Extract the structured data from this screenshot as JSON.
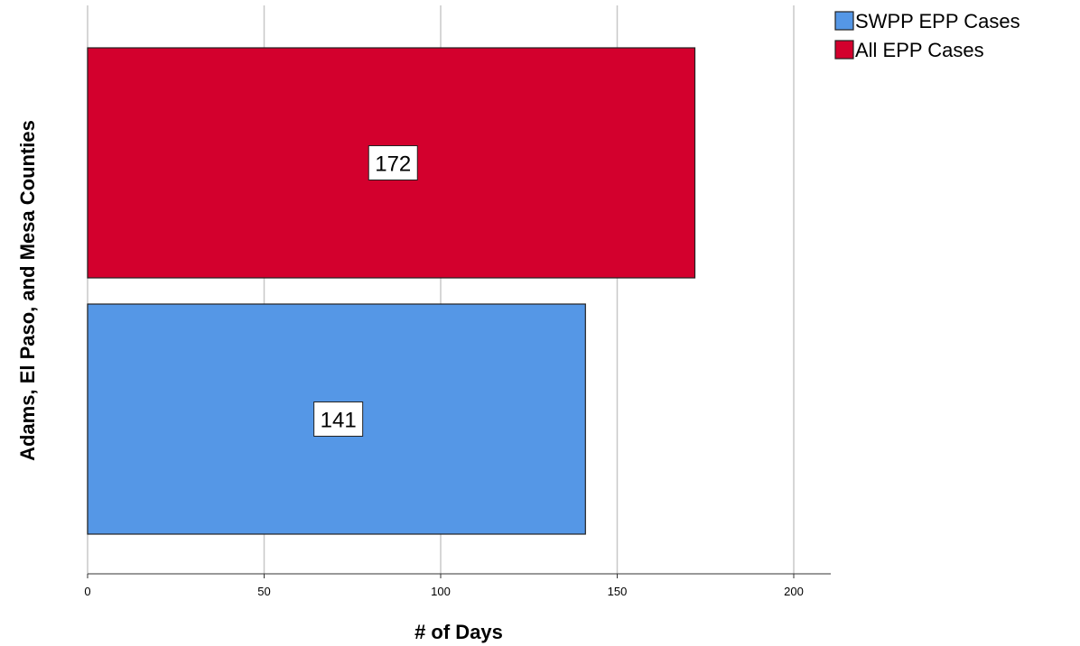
{
  "chart_data": {
    "type": "bar",
    "orientation": "horizontal",
    "categories": [
      "Adams, El Paso, and Mesa Counties"
    ],
    "series": [
      {
        "name": "SWPP EPP Cases",
        "values": [
          141
        ],
        "color": "#5597e6"
      },
      {
        "name": "All EPP Cases",
        "values": [
          172
        ],
        "color": "#d3002d"
      }
    ],
    "title": "",
    "xlabel": "# of Days",
    "ylabel": "Adams, El Paso, and Mesa Counties",
    "xlim": [
      0,
      210
    ],
    "xticks": [
      0,
      50,
      100,
      150,
      200
    ],
    "grid": "vertical",
    "legend_position": "top-right",
    "data_labels": true
  }
}
